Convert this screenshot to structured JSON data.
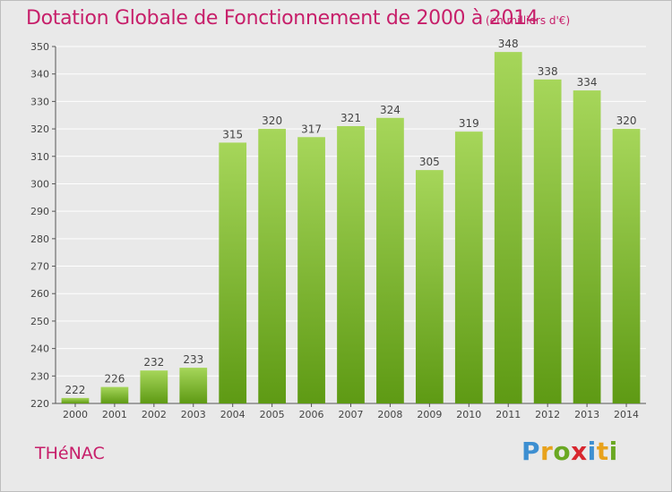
{
  "header": {
    "title": "Dotation Globale de Fonctionnement de 2000 à 2014",
    "unit_note": "(en milliers d'€)"
  },
  "footer": {
    "commune": "THéNAC",
    "logo_text": "Proxiti"
  },
  "colors": {
    "title": "#c71f6a",
    "bar_top": "#a6d65a",
    "bar_bottom": "#5e9a14",
    "grid": "#ffffff",
    "background": "#e9e9e9"
  },
  "chart_data": {
    "type": "bar",
    "title": "Dotation Globale de Fonctionnement de 2000 à 2014",
    "subtitle": "(en milliers d'€)",
    "xlabel": "",
    "ylabel": "",
    "categories": [
      "2000",
      "2001",
      "2002",
      "2003",
      "2004",
      "2005",
      "2006",
      "2007",
      "2008",
      "2009",
      "2010",
      "2011",
      "2012",
      "2013",
      "2014"
    ],
    "values": [
      222,
      226,
      232,
      233,
      315,
      320,
      317,
      321,
      324,
      305,
      319,
      348,
      338,
      334,
      320
    ],
    "data_labels": [
      "222",
      "226",
      "232",
      "233",
      "315",
      "320",
      "317",
      "321",
      "324",
      "305",
      "319",
      "348",
      "338",
      "334",
      "320"
    ],
    "ylim": [
      220,
      350
    ],
    "yticks": [
      220,
      230,
      240,
      250,
      260,
      270,
      280,
      290,
      300,
      310,
      320,
      330,
      340,
      350
    ],
    "grid": true,
    "legend": "none"
  }
}
